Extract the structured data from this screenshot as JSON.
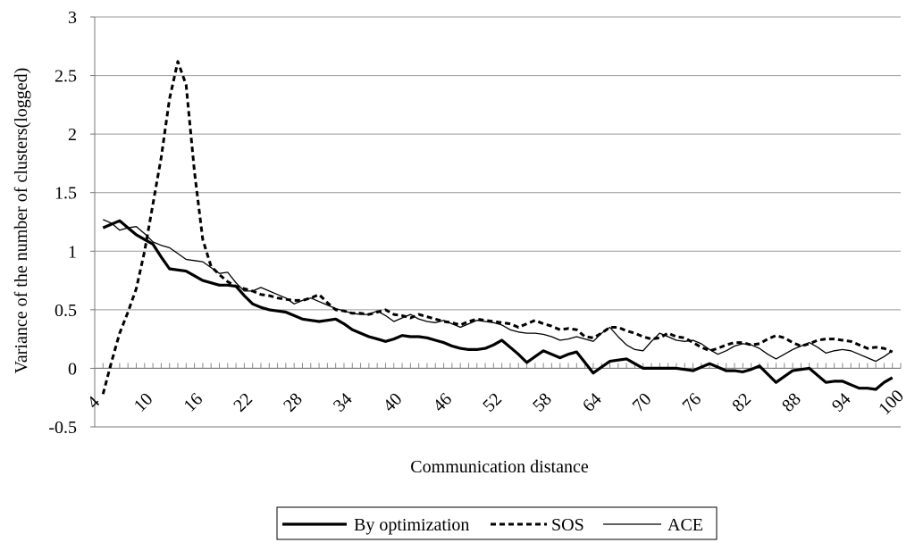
{
  "chart_data": {
    "type": "line",
    "title": "",
    "xlabel": "Communication distance",
    "ylabel": "Variance of the number of clusters(logged)",
    "ylim": [
      -0.5,
      3
    ],
    "yticks": [
      -0.5,
      0,
      0.5,
      1,
      1.5,
      2,
      2.5,
      3
    ],
    "ytick_labels": [
      "-0.5",
      "0",
      "0.5",
      "1",
      "1.5",
      "2",
      "2.5",
      "3"
    ],
    "xlim": [
      4,
      101
    ],
    "xticks": [
      4,
      10,
      16,
      22,
      28,
      34,
      40,
      46,
      52,
      58,
      64,
      70,
      76,
      82,
      88,
      94,
      100
    ],
    "xtick_labels": [
      "4",
      "10",
      "16",
      "22",
      "28",
      "34",
      "40",
      "46",
      "52",
      "58",
      "64",
      "70",
      "76",
      "82",
      "88",
      "94",
      "100"
    ],
    "grid": "horizontal",
    "legend_position": "bottom",
    "x": [
      5,
      6,
      7,
      8,
      9,
      10,
      11,
      12,
      13,
      14,
      15,
      16,
      17,
      18,
      19,
      20,
      21,
      22,
      23,
      24,
      25,
      26,
      27,
      28,
      29,
      30,
      31,
      32,
      33,
      34,
      35,
      36,
      37,
      38,
      39,
      40,
      41,
      42,
      43,
      44,
      45,
      46,
      47,
      48,
      49,
      50,
      51,
      52,
      53,
      54,
      55,
      56,
      57,
      58,
      59,
      60,
      61,
      62,
      63,
      64,
      65,
      66,
      67,
      68,
      69,
      70,
      71,
      72,
      73,
      74,
      75,
      76,
      77,
      78,
      79,
      80,
      81,
      82,
      83,
      84,
      85,
      86,
      87,
      88,
      89,
      90,
      91,
      92,
      93,
      94,
      95,
      96,
      97,
      98,
      99,
      100
    ],
    "series": [
      {
        "name": "By optimization",
        "style": "thick-solid",
        "values": [
          1.2,
          1.23,
          1.26,
          1.2,
          1.14,
          1.1,
          1.06,
          0.95,
          0.85,
          0.84,
          0.83,
          0.79,
          0.75,
          0.73,
          0.71,
          0.71,
          0.7,
          0.62,
          0.55,
          0.52,
          0.5,
          0.49,
          0.48,
          0.45,
          0.42,
          0.41,
          0.4,
          0.41,
          0.42,
          0.38,
          0.33,
          0.3,
          0.27,
          0.25,
          0.23,
          0.25,
          0.28,
          0.27,
          0.27,
          0.26,
          0.24,
          0.22,
          0.19,
          0.17,
          0.16,
          0.16,
          0.17,
          0.2,
          0.24,
          0.18,
          0.12,
          0.05,
          0.1,
          0.15,
          0.12,
          0.09,
          0.12,
          0.14,
          0.05,
          -0.04,
          0.01,
          0.06,
          0.07,
          0.08,
          0.04,
          0.0,
          0.0,
          0.0,
          0.0,
          0.0,
          -0.01,
          -0.02,
          0.01,
          0.04,
          0.01,
          -0.02,
          -0.02,
          -0.03,
          -0.01,
          0.02,
          -0.05,
          -0.12,
          -0.07,
          -0.02,
          -0.01,
          0.0,
          -0.06,
          -0.12,
          -0.11,
          -0.11,
          -0.14,
          -0.17,
          -0.17,
          -0.18,
          -0.12,
          -0.08
        ]
      },
      {
        "name": "SOS",
        "style": "dashed",
        "values": [
          -0.22,
          0.05,
          0.3,
          0.48,
          0.68,
          1.0,
          1.4,
          1.8,
          2.3,
          2.62,
          2.42,
          1.68,
          1.1,
          0.87,
          0.8,
          0.74,
          0.7,
          0.68,
          0.66,
          0.63,
          0.62,
          0.6,
          0.59,
          0.58,
          0.58,
          0.6,
          0.63,
          0.56,
          0.5,
          0.49,
          0.47,
          0.47,
          0.46,
          0.48,
          0.5,
          0.46,
          0.45,
          0.43,
          0.46,
          0.44,
          0.42,
          0.4,
          0.39,
          0.37,
          0.4,
          0.42,
          0.41,
          0.4,
          0.39,
          0.38,
          0.35,
          0.38,
          0.41,
          0.38,
          0.36,
          0.33,
          0.34,
          0.33,
          0.27,
          0.26,
          0.3,
          0.35,
          0.35,
          0.32,
          0.3,
          0.27,
          0.25,
          0.26,
          0.3,
          0.27,
          0.26,
          0.22,
          0.18,
          0.15,
          0.17,
          0.2,
          0.22,
          0.22,
          0.2,
          0.21,
          0.25,
          0.28,
          0.26,
          0.22,
          0.19,
          0.21,
          0.24,
          0.25,
          0.25,
          0.24,
          0.23,
          0.2,
          0.17,
          0.18,
          0.17,
          0.14
        ]
      },
      {
        "name": "ACE",
        "style": "thin-solid",
        "values": [
          1.27,
          1.24,
          1.18,
          1.2,
          1.21,
          1.15,
          1.08,
          1.05,
          1.03,
          0.98,
          0.93,
          0.92,
          0.91,
          0.86,
          0.81,
          0.82,
          0.73,
          0.66,
          0.66,
          0.69,
          0.66,
          0.63,
          0.6,
          0.55,
          0.58,
          0.6,
          0.57,
          0.54,
          0.51,
          0.49,
          0.47,
          0.46,
          0.46,
          0.49,
          0.45,
          0.4,
          0.43,
          0.46,
          0.42,
          0.4,
          0.39,
          0.41,
          0.38,
          0.35,
          0.38,
          0.41,
          0.4,
          0.39,
          0.37,
          0.33,
          0.31,
          0.3,
          0.3,
          0.29,
          0.27,
          0.24,
          0.25,
          0.27,
          0.25,
          0.23,
          0.3,
          0.35,
          0.27,
          0.2,
          0.16,
          0.15,
          0.23,
          0.3,
          0.27,
          0.24,
          0.23,
          0.24,
          0.21,
          0.16,
          0.12,
          0.15,
          0.19,
          0.21,
          0.2,
          0.17,
          0.12,
          0.08,
          0.12,
          0.16,
          0.19,
          0.22,
          0.18,
          0.13,
          0.15,
          0.16,
          0.15,
          0.12,
          0.09,
          0.06,
          0.1,
          0.15
        ]
      }
    ]
  }
}
